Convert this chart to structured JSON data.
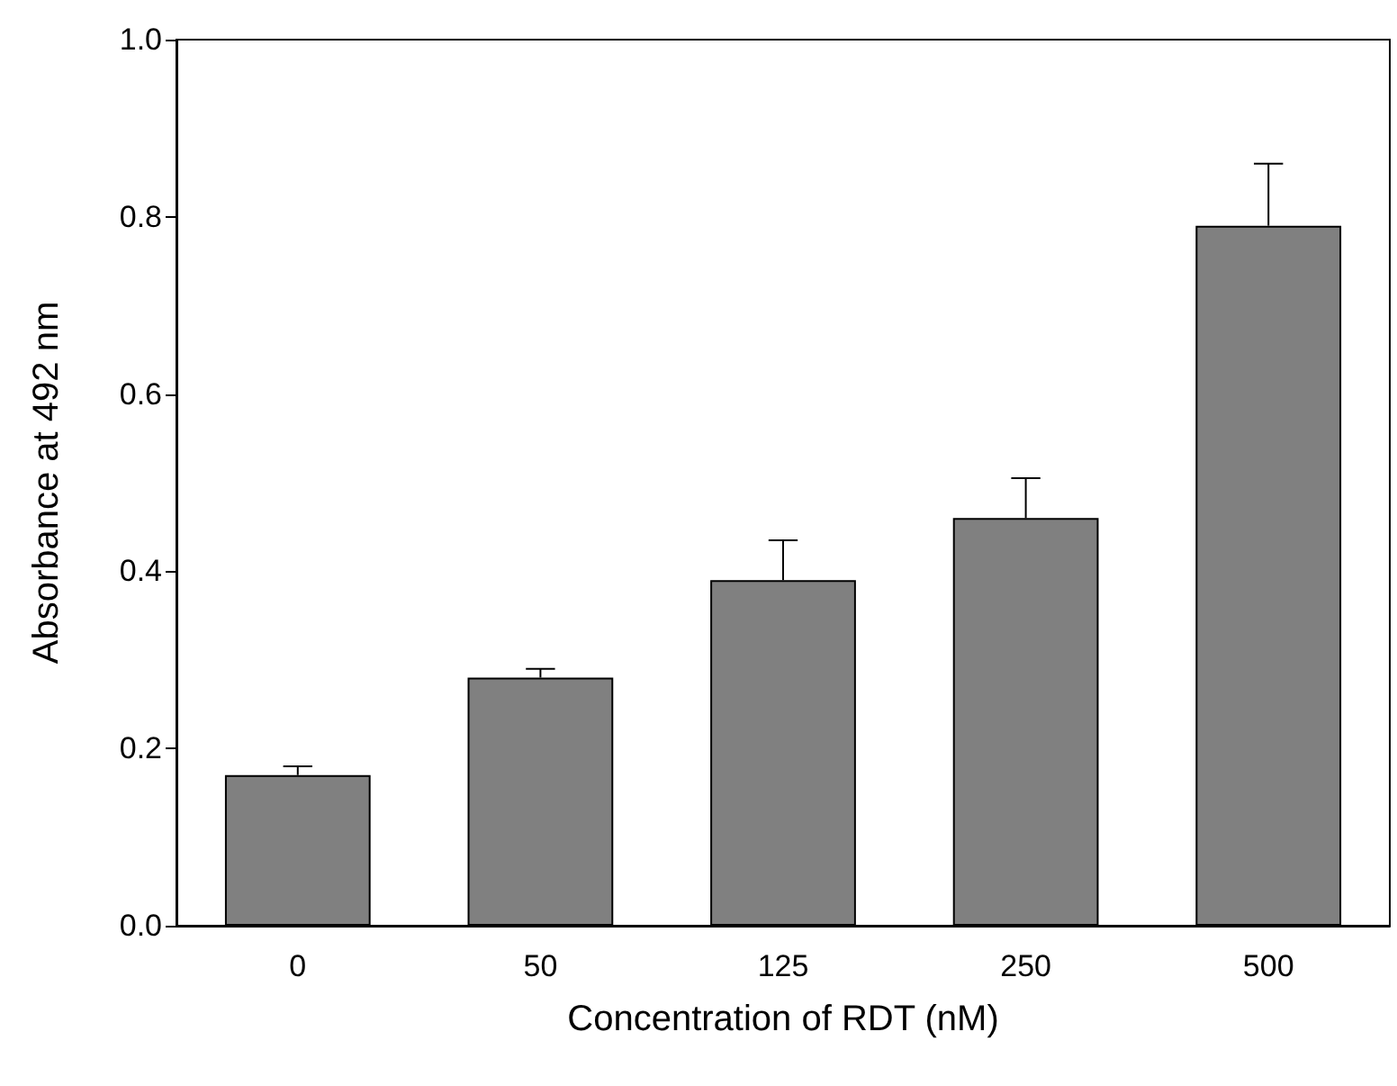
{
  "chart_data": {
    "type": "bar",
    "xlabel": "Concentration of RDT (nM)",
    "ylabel": "Absorbance at 492 nm",
    "categories": [
      "0",
      "50",
      "125",
      "250",
      "500"
    ],
    "values": [
      0.17,
      0.28,
      0.39,
      0.46,
      0.79
    ],
    "errors": [
      [
        0.17,
        0.18
      ],
      [
        0.28,
        0.29
      ],
      [
        0.39,
        0.435
      ],
      [
        0.46,
        0.505
      ],
      [
        0.79,
        0.86
      ]
    ],
    "color": "#808080",
    "ylim": [
      0,
      1
    ],
    "yticks": [
      {
        "value": 0,
        "label": "0.0"
      },
      {
        "value": 0.2,
        "label": "0.2"
      },
      {
        "value": 0.4,
        "label": "0.4"
      },
      {
        "value": 0.6,
        "label": "0.6"
      },
      {
        "value": 0.8,
        "label": "0.8"
      },
      {
        "value": 1,
        "label": "1.0"
      }
    ],
    "grid": false
  }
}
